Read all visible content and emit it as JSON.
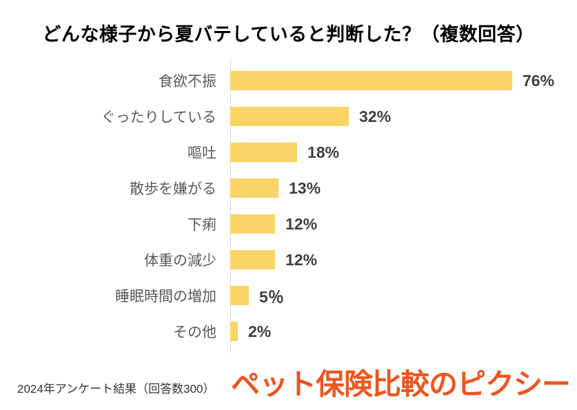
{
  "title": "どんな様子から夏バテしていると判断した？（複数回答）",
  "footer": {
    "source_note": "2024年アンケート結果（回答数300）"
  },
  "logo": {
    "text": "ペット保険比較のピクシー",
    "color": "#f0541e"
  },
  "colors": {
    "bar_fill": "#fad466",
    "category_label": "#595959",
    "value_label": "#3f3f3f",
    "axis_line": "#d9d9d9",
    "title_text": "#000000"
  },
  "chart_data": {
    "type": "bar",
    "orientation": "horizontal",
    "title": "どんな様子から夏バテしていると判断した？（複数回答）",
    "categories": [
      "食欲不振",
      "ぐったりしている",
      "嘔吐",
      "散歩を嫌がる",
      "下痢",
      "体重の減少",
      "睡眠時間の増加",
      "その他"
    ],
    "values": [
      76,
      32,
      18,
      13,
      12,
      12,
      5,
      2
    ],
    "value_labels": [
      "76%",
      "32%",
      "18%",
      "13%",
      "12%",
      "12%",
      "5％",
      "2%"
    ],
    "xlabel": "",
    "ylabel": "",
    "grid": false,
    "legend": false,
    "rows": [
      {
        "label": "食欲不振",
        "value": 76,
        "display": "76%"
      },
      {
        "label": "ぐったりしている",
        "value": 32,
        "display": "32%"
      },
      {
        "label": "嘔吐",
        "value": 18,
        "display": "18%"
      },
      {
        "label": "散歩を嫌がる",
        "value": 13,
        "display": "13%"
      },
      {
        "label": "下痢",
        "value": 12,
        "display": "12%"
      },
      {
        "label": "体重の減少",
        "value": 12,
        "display": "12%"
      },
      {
        "label": "睡眠時間の増加",
        "value": 5,
        "display": "5％"
      },
      {
        "label": "その他",
        "value": 2,
        "display": "2%"
      }
    ]
  }
}
